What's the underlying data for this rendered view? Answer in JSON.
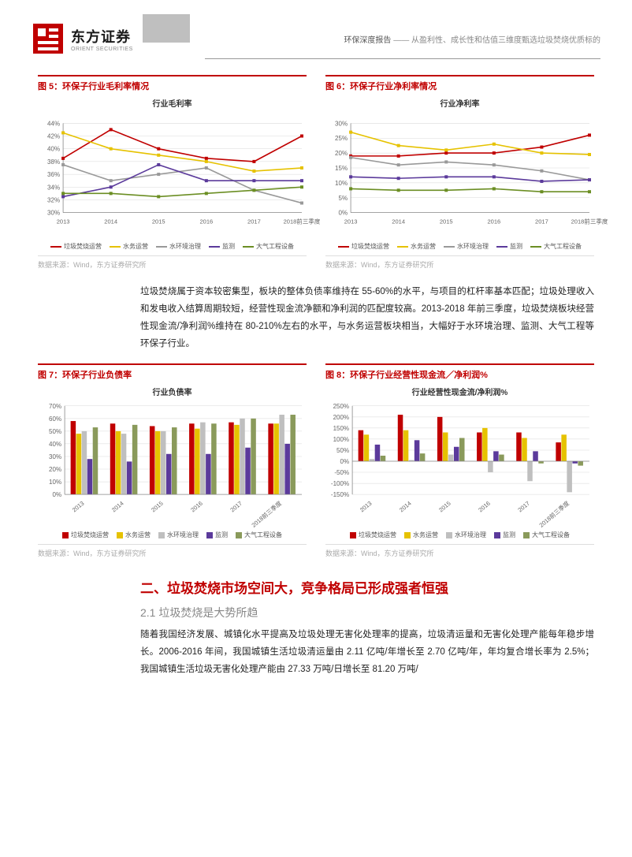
{
  "header": {
    "logo_cn": "东方证券",
    "logo_en": "ORIENT SECURITIES",
    "report_type": "环保深度报告",
    "report_sub": "—— 从盈利性、成长性和估值三维度甄选垃圾焚烧优质标的"
  },
  "fig5": {
    "label": "图 5：环保子行业毛利率情况",
    "title": "行业毛利率",
    "source": "数据来源：Wind，东方证券研究所",
    "type": "line",
    "x_labels": [
      "2013",
      "2014",
      "2015",
      "2016",
      "2017",
      "2018前三季度"
    ],
    "ylim": [
      30,
      44
    ],
    "ytick_step": 2,
    "series": [
      {
        "name": "垃圾焚烧运营",
        "color": "#c00000",
        "values": [
          38.5,
          43,
          40,
          38.5,
          38,
          42
        ]
      },
      {
        "name": "水务运营",
        "color": "#e6c200",
        "values": [
          42.5,
          40,
          39,
          38,
          36.5,
          37
        ]
      },
      {
        "name": "水环境治理",
        "color": "#999999",
        "values": [
          37.5,
          35,
          36,
          37,
          33.5,
          31.5
        ]
      },
      {
        "name": "监测",
        "color": "#5b3a9b",
        "values": [
          32.5,
          34,
          37.5,
          35,
          35,
          35
        ]
      },
      {
        "name": "大气工程设备",
        "color": "#6b8e23",
        "values": [
          33,
          33,
          32.5,
          33,
          33.5,
          34
        ]
      }
    ],
    "axis_fontsize": 8,
    "grid_color": "#d9d9d9"
  },
  "fig6": {
    "label": "图 6：环保子行业净利率情况",
    "title": "行业净利率",
    "source": "数据来源：Wind，东方证券研究所",
    "type": "line",
    "x_labels": [
      "2013",
      "2014",
      "2015",
      "2016",
      "2017",
      "2018前三季度"
    ],
    "ylim": [
      0,
      30
    ],
    "ytick_step": 5,
    "series": [
      {
        "name": "垃圾焚烧运营",
        "color": "#c00000",
        "values": [
          19,
          19,
          20,
          20,
          22,
          26
        ]
      },
      {
        "name": "水务运营",
        "color": "#e6c200",
        "values": [
          27,
          22.5,
          21,
          23,
          20,
          19.5
        ]
      },
      {
        "name": "水环境治理",
        "color": "#999999",
        "values": [
          18.5,
          16,
          17,
          16,
          14,
          11
        ]
      },
      {
        "name": "监测",
        "color": "#5b3a9b",
        "values": [
          12,
          11.5,
          12,
          12,
          10.5,
          11
        ]
      },
      {
        "name": "大气工程设备",
        "color": "#6b8e23",
        "values": [
          8,
          7.5,
          7.5,
          8,
          7,
          7
        ]
      }
    ],
    "axis_fontsize": 8,
    "grid_color": "#d9d9d9"
  },
  "fig7": {
    "label": "图 7：环保子行业负债率",
    "title": "行业负债率",
    "source": "数据来源：Wind，东方证券研究所",
    "type": "bar",
    "x_labels": [
      "2013",
      "2014",
      "2015",
      "2016",
      "2017",
      "2018前三季度"
    ],
    "ylim": [
      0,
      70
    ],
    "ytick_step": 10,
    "series": [
      {
        "name": "垃圾焚烧运营",
        "color": "#c00000",
        "values": [
          58,
          56,
          54,
          56,
          57,
          56
        ]
      },
      {
        "name": "水务运营",
        "color": "#e6c200",
        "values": [
          48,
          50,
          50,
          52,
          55,
          56
        ]
      },
      {
        "name": "水环境治理",
        "color": "#bfbfbf",
        "values": [
          50,
          48,
          50,
          57,
          60,
          63
        ]
      },
      {
        "name": "监测",
        "color": "#5b3a9b",
        "values": [
          28,
          26,
          32,
          32,
          37,
          40
        ]
      },
      {
        "name": "大气工程设备",
        "color": "#8a9a5b",
        "values": [
          53,
          55,
          53,
          56,
          60,
          63
        ]
      }
    ],
    "bar_width": 0.14,
    "axis_fontsize": 8,
    "grid_color": "#d9d9d9"
  },
  "fig8": {
    "label": "图 8：环保子行业经营性现金流／净利润%",
    "title": "行业经营性现金流/净利润%",
    "source": "数据来源：Wind，东方证券研究所",
    "type": "bar",
    "x_labels": [
      "2013",
      "2014",
      "2015",
      "2016",
      "2017",
      "2018前三季度"
    ],
    "ylim": [
      -150,
      250
    ],
    "ytick_step": 50,
    "series": [
      {
        "name": "垃圾焚烧运营",
        "color": "#c00000",
        "values": [
          140,
          210,
          200,
          130,
          130,
          85
        ]
      },
      {
        "name": "水务运营",
        "color": "#e6c200",
        "values": [
          120,
          140,
          130,
          150,
          105,
          120
        ]
      },
      {
        "name": "水环境治理",
        "color": "#bfbfbf",
        "values": [
          10,
          5,
          30,
          -50,
          -90,
          -140
        ]
      },
      {
        "name": "监测",
        "color": "#5b3a9b",
        "values": [
          75,
          95,
          65,
          45,
          45,
          -10
        ]
      },
      {
        "name": "大气工程设备",
        "color": "#8a9a5b",
        "values": [
          25,
          35,
          105,
          30,
          -10,
          -20
        ]
      }
    ],
    "bar_width": 0.14,
    "axis_fontsize": 8,
    "grid_color": "#d9d9d9"
  },
  "para1": "垃圾焚烧属于资本较密集型，板块的整体负债率维持在 55-60%的水平，与项目的杠杆率基本匹配；垃圾处理收入和发电收入结算周期较短，经营性现金流净额和净利润的匹配度较高。2013-2018 年前三季度，垃圾焚烧板块经营性现金流/净利润%维持在 80-210%左右的水平，与水务运营板块相当，大幅好于水环境治理、监测、大气工程等环保子行业。",
  "section2": {
    "title": "二、垃圾焚烧市场空间大，竞争格局已形成强者恒强",
    "sub": "2.1 垃圾焚烧是大势所趋"
  },
  "para2": "随着我国经济发展、城镇化水平提高及垃圾处理无害化处理率的提高，垃圾清运量和无害化处理产能每年稳步增长。2006-2016 年间，我国城镇生活垃圾清运量由 2.11 亿吨/年增长至 2.70 亿吨/年，年均复合增长率为 2.5%；我国城镇生活垃圾无害化处理产能由 27.33 万吨/日增长至 81.20 万吨/"
}
